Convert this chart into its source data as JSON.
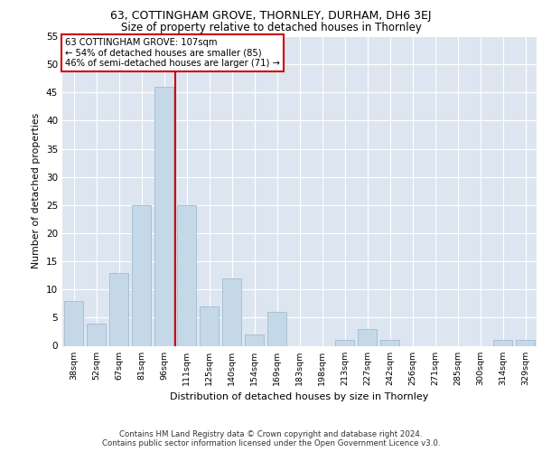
{
  "title1": "63, COTTINGHAM GROVE, THORNLEY, DURHAM, DH6 3EJ",
  "title2": "Size of property relative to detached houses in Thornley",
  "xlabel": "Distribution of detached houses by size in Thornley",
  "ylabel": "Number of detached properties",
  "footnote1": "Contains HM Land Registry data © Crown copyright and database right 2024.",
  "footnote2": "Contains public sector information licensed under the Open Government Licence v3.0.",
  "annotation_line1": "63 COTTINGHAM GROVE: 107sqm",
  "annotation_line2": "← 54% of detached houses are smaller (85)",
  "annotation_line3": "46% of semi-detached houses are larger (71) →",
  "categories": [
    "38sqm",
    "52sqm",
    "67sqm",
    "81sqm",
    "96sqm",
    "111sqm",
    "125sqm",
    "140sqm",
    "154sqm",
    "169sqm",
    "183sqm",
    "198sqm",
    "213sqm",
    "227sqm",
    "242sqm",
    "256sqm",
    "271sqm",
    "285sqm",
    "300sqm",
    "314sqm",
    "329sqm"
  ],
  "values": [
    8,
    4,
    13,
    25,
    46,
    25,
    7,
    12,
    2,
    6,
    0,
    0,
    1,
    3,
    1,
    0,
    0,
    0,
    0,
    1,
    1
  ],
  "bar_color": "#c5d8e8",
  "bar_edge_color": "#a0bcd0",
  "vline_color": "#cc0000",
  "vline_x": 4.5,
  "background_color": "#dde6f0",
  "grid_color": "#ffffff",
  "ylim": [
    0,
    55
  ],
  "yticks": [
    0,
    5,
    10,
    15,
    20,
    25,
    30,
    35,
    40,
    45,
    50,
    55
  ],
  "annotation_box_facecolor": "#ffffff",
  "annotation_box_edgecolor": "#cc0000"
}
